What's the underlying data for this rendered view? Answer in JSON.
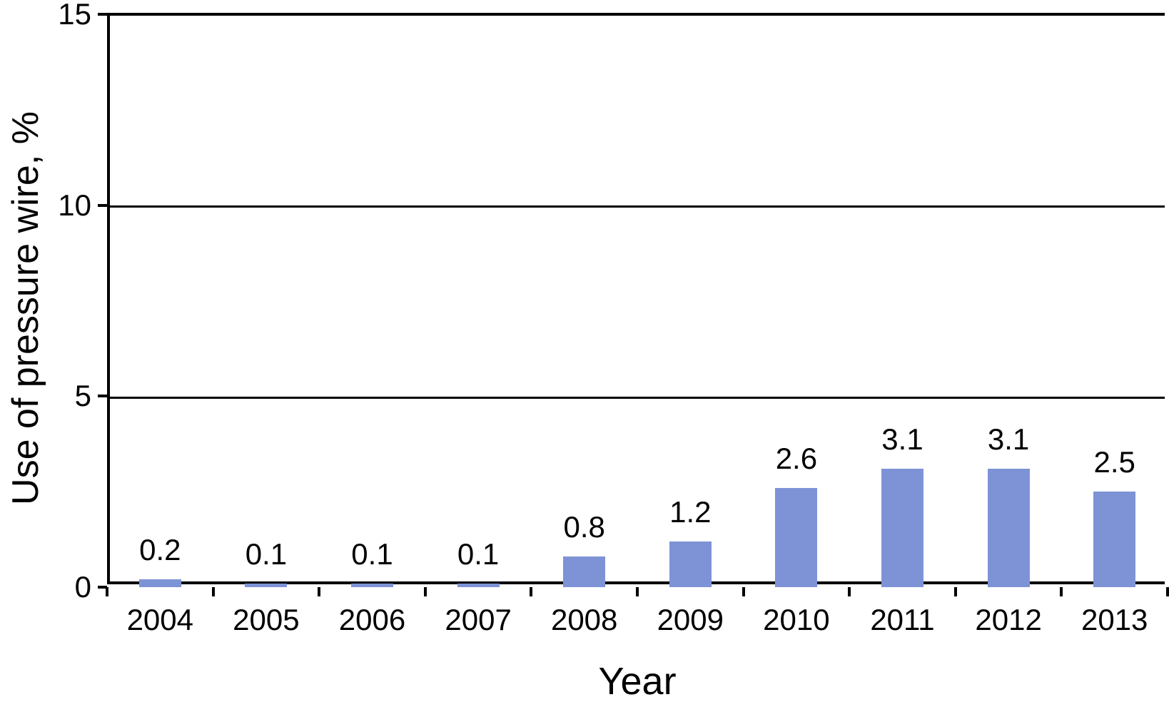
{
  "chart_data": {
    "type": "bar",
    "categories": [
      "2004",
      "2005",
      "2006",
      "2007",
      "2008",
      "2009",
      "2010",
      "2011",
      "2012",
      "2013"
    ],
    "values": [
      0.2,
      0.1,
      0.1,
      0.1,
      0.8,
      1.2,
      2.6,
      3.1,
      3.1,
      2.5
    ],
    "bar_labels": [
      "0.2",
      "0.1",
      "0.1",
      "0.1",
      "0.8",
      "1.2",
      "2.6",
      "3.1",
      "3.1",
      "2.5"
    ],
    "title": "",
    "xlabel": "Year",
    "ylabel": "Use of pressure wire, %",
    "ylim": [
      0,
      15
    ],
    "yticks": [
      0,
      5,
      10,
      15
    ],
    "ytick_labels": [
      "0",
      "5",
      "10",
      "15"
    ],
    "grid": "horizontal",
    "legend": "none",
    "colors": {
      "bar": "#7E93D6",
      "axis": "#000000",
      "text": "#000000",
      "background": "#FFFFFF"
    }
  }
}
